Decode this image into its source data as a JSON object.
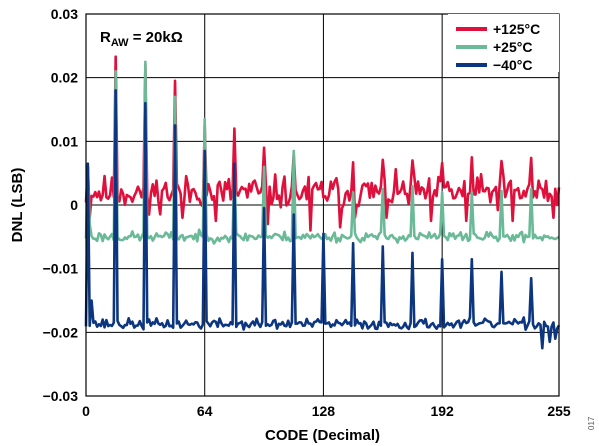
{
  "chart_data": {
    "type": "line",
    "xlabel": "CODE (Decimal)",
    "ylabel": "DNL (LSB)",
    "xlim": [
      0,
      255
    ],
    "ylim": [
      -0.03,
      0.03
    ],
    "x_ticks": [
      0,
      64,
      128,
      192,
      255
    ],
    "y_ticks": [
      {
        "value": 0.03,
        "label": "0.03"
      },
      {
        "value": 0.02,
        "label": "0.02"
      },
      {
        "value": 0.01,
        "label": "0.01"
      },
      {
        "value": 0,
        "label": "0"
      },
      {
        "value": -0.01,
        "label": "−0.01"
      },
      {
        "value": -0.02,
        "label": "−0.02"
      },
      {
        "value": -0.03,
        "label": "−0.03"
      }
    ],
    "grid": true,
    "legend_position": "top-right",
    "annotation": {
      "main": "R",
      "sub": "AW",
      "rest": " = 20kΩ"
    },
    "figure_id": "017",
    "series": [
      {
        "name": "+125°C",
        "color": "#e0103c",
        "base": 0.002,
        "noise": 0.0019,
        "seed": 11,
        "spikes": [
          [
            1,
            0.006
          ],
          [
            2,
            -0.002
          ],
          [
            16,
            0.0233
          ],
          [
            32,
            0.022
          ],
          [
            48,
            0.0195
          ],
          [
            64,
            0.0125
          ],
          [
            80,
            0.012
          ],
          [
            96,
            0.009
          ],
          [
            112,
            0.008
          ],
          [
            144,
            0.0067
          ],
          [
            160,
            0.0071
          ],
          [
            176,
            0.007
          ],
          [
            192,
            0.0066
          ],
          [
            208,
            0.0075
          ],
          [
            224,
            0.0069
          ],
          [
            240,
            0.0074
          ],
          [
            34,
            -0.0015
          ],
          [
            52,
            -0.002
          ],
          [
            70,
            -0.0025
          ],
          [
            98,
            -0.003
          ],
          [
            121,
            -0.004
          ],
          [
            137,
            -0.0035
          ],
          [
            145,
            -0.002
          ],
          [
            162,
            -0.002
          ],
          [
            186,
            -0.0025
          ],
          [
            205,
            -0.0025
          ],
          [
            230,
            -0.0025
          ],
          [
            252,
            -0.002
          ]
        ]
      },
      {
        "name": "+25°C",
        "color": "#6ab997",
        "base": -0.005,
        "noise": 0.0006,
        "seed": 23,
        "spikes": [
          [
            1,
            0.006
          ],
          [
            2,
            -0.003
          ],
          [
            16,
            0.021
          ],
          [
            32,
            0.0225
          ],
          [
            48,
            0.017
          ],
          [
            64,
            0.0135
          ],
          [
            80,
            0.006
          ],
          [
            96,
            0.006
          ],
          [
            112,
            0.0085
          ],
          [
            144,
            0.002
          ],
          [
            160,
            0.0025
          ],
          [
            176,
            0.003
          ],
          [
            192,
            0.002
          ],
          [
            208,
            0.002
          ],
          [
            224,
            0.0022
          ],
          [
            240,
            0.0025
          ]
        ]
      },
      {
        "name": "−40°C",
        "color": "#0d3680",
        "base": -0.0187,
        "noise": 0.0006,
        "seed": 37,
        "spikes": [
          [
            1,
            0.0065
          ],
          [
            3,
            -0.015
          ],
          [
            4,
            -0.0185
          ],
          [
            16,
            0.018
          ],
          [
            32,
            0.016
          ],
          [
            48,
            0.0125
          ],
          [
            64,
            0.0085
          ],
          [
            80,
            0.0065
          ],
          [
            96,
            -0.0005
          ],
          [
            112,
            -0.0015
          ],
          [
            128,
            -0.0045
          ],
          [
            144,
            -0.006
          ],
          [
            160,
            -0.0065
          ],
          [
            176,
            -0.0075
          ],
          [
            192,
            -0.0085
          ],
          [
            208,
            -0.0085
          ],
          [
            224,
            -0.0105
          ],
          [
            240,
            -0.0115
          ],
          [
            246,
            -0.0225
          ],
          [
            250,
            -0.0215
          ],
          [
            253,
            -0.021
          ]
        ]
      }
    ]
  }
}
